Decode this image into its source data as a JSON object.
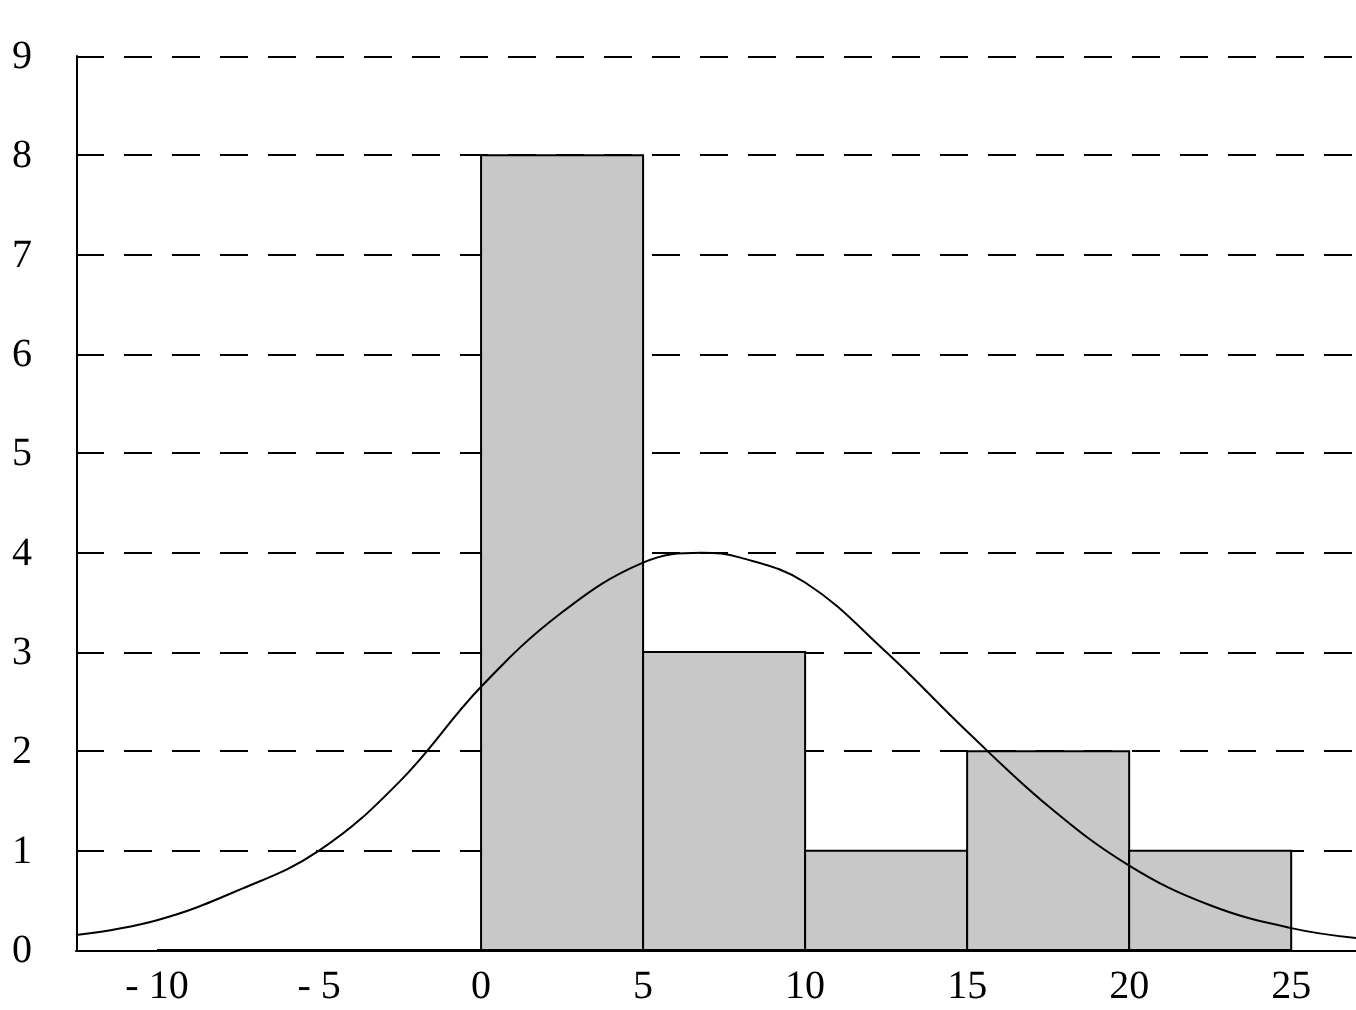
{
  "chart_data": {
    "type": "histogram",
    "bins": [
      -10,
      -5,
      0,
      5,
      10,
      15,
      20,
      25
    ],
    "values": [
      0,
      0,
      8,
      3,
      1,
      2,
      1
    ],
    "color": "#c8c8c8",
    "xlim": [
      -12.5,
      27
    ],
    "xticks": [
      {
        "value": -10,
        "label": "- 10"
      },
      {
        "value": -5,
        "label": "- 5"
      },
      0,
      5,
      10,
      15,
      20,
      25
    ],
    "ylim": [
      0,
      9
    ],
    "yticks": [
      0,
      1,
      2,
      3,
      4,
      5,
      6,
      7,
      8,
      9
    ],
    "grid": "y",
    "series": [
      {
        "type": "line",
        "color": "#000000",
        "x": [
          -12.5,
          -10,
          -7.5,
          -5,
          -2.5,
          0,
          2.5,
          5,
          6.8,
          8,
          10,
          12.5,
          15,
          17.5,
          20,
          22.5,
          25,
          27
        ],
        "values": [
          0.15,
          0.3,
          0.6,
          1.0,
          1.7,
          2.65,
          3.4,
          3.9,
          4.0,
          3.95,
          3.7,
          3.0,
          2.2,
          1.45,
          0.85,
          0.45,
          0.22,
          0.12
        ]
      }
    ]
  }
}
